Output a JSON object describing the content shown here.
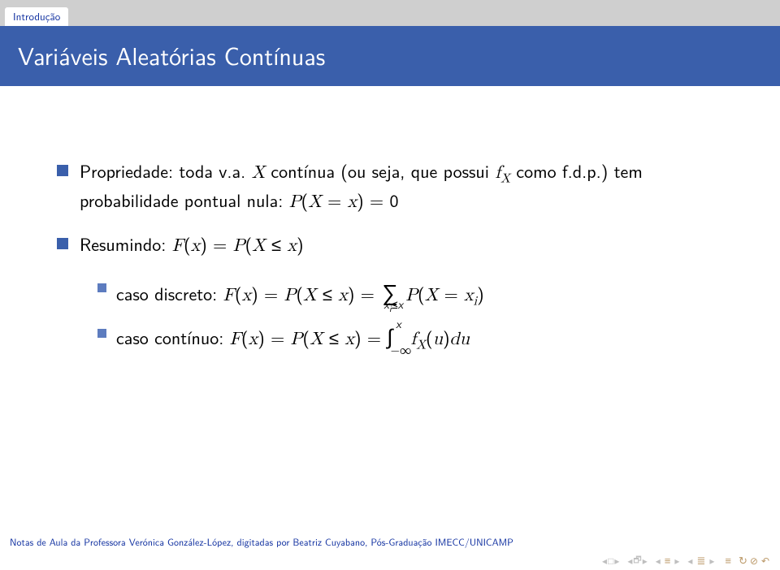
{
  "header": {
    "section_tab": "Introdução"
  },
  "title": "Variáveis Aleatórias Contínuas",
  "bullets": [
    {
      "html": "Propriedade: toda v.a. <span class='math-i'>X</span> contínua (ou seja, que possui <span class='math-i'>f<span class='sub'>X</span></span> como f.d.p.) tem probabilidade pontual nula: <span class='math-i'>P</span>(<span class='math-i'>X</span> = <span class='math-i'>x</span>) = 0"
    },
    {
      "html": "Resumindo: <span class='math-i'>F</span>(<span class='math-i'>x</span>) = <span class='math-i'>P</span>(<span class='math-i'>X</span> ≤ <span class='math-i'>x</span>)",
      "sub": [
        {
          "html": "caso discreto: <span class='math-i'>F</span>(<span class='math-i'>x</span>) = <span class='math-i'>P</span>(<span class='math-i'>X</span> ≤ <span class='math-i'>x</span>) = <span class='sum'>∑<span class='lim-sub'>x<span style=\"font-size:0.8em;vertical-align:sub\">i</span>≤x</span></span> <span class='math-i'>P</span>(<span class='math-i'>X</span> = <span class='math-i'>x<span class='sub'>i</span></span>)"
        },
        {
          "html": "caso contínuo: <span class='math-i'>F</span>(<span class='math-i'>x</span>) = <span class='math-i'>P</span>(<span class='math-i'>X</span> ≤ <span class='math-i'>x</span>) = <span class='int'>∫<span class='lim-sup'>x</span><span class='lim-sub'>−∞</span></span>&nbsp;&nbsp;<span class='math-i'>f<span class='sub'>X</span></span>(<span class='math-i'>u</span>)<span class='math-i'>du</span>"
        }
      ]
    }
  ],
  "footer": {
    "credits": "Notas de Aula da Professora Verónica González-López, digitadas por Beatriz Cuyabano, Pós-Graduação IMECC/UNICAMP"
  },
  "colors": {
    "title_bg": "#3a5fab",
    "tab_bg": "#cfcfcf",
    "bullet1": "#3a5fab",
    "bullet2": "#5d7cbf",
    "link": "#1030a0"
  }
}
